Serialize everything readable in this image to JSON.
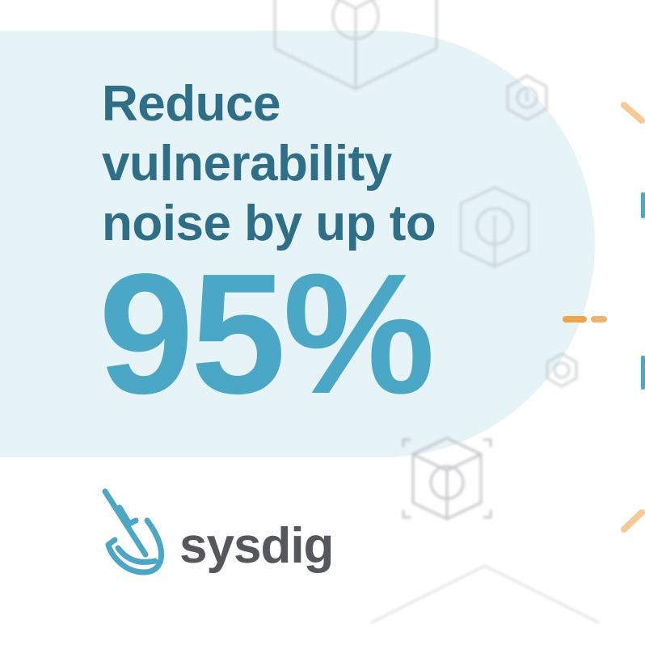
{
  "headline": {
    "line1": "Reduce",
    "line2": "vulnerability",
    "line3": "noise by up to"
  },
  "stat": "95%",
  "brand": {
    "name": "sysdig"
  },
  "colors": {
    "headline": "#2e6f87",
    "stat": "#4aa8c6",
    "panel": "#e6f4f8",
    "wordmark": "#56575c",
    "accent_orange": "#f2a444"
  },
  "icons": [
    "cube-alert-icon",
    "shovel-logo-icon"
  ]
}
